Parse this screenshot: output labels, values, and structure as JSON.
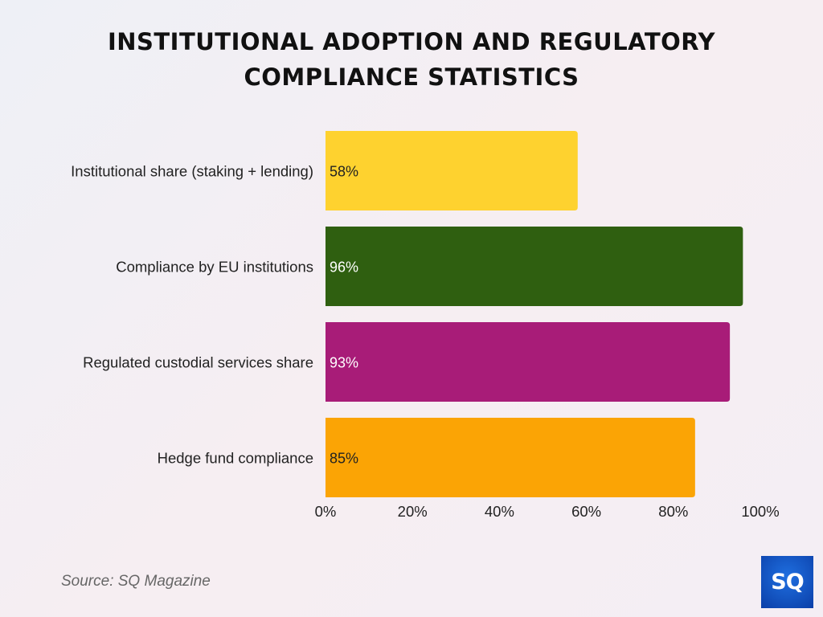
{
  "title_line1": "INSTITUTIONAL ADOPTION AND REGULATORY",
  "title_line2": "COMPLIANCE STATISTICS",
  "source": "Source: SQ Magazine",
  "logo_text": "SQ",
  "chart_data": {
    "type": "bar",
    "orientation": "horizontal",
    "title": "INSTITUTIONAL ADOPTION AND REGULATORY COMPLIANCE STATISTICS",
    "categories": [
      "Institutional share (staking + lending)",
      "Compliance by EU institutions",
      "Regulated custodial services share",
      "Hedge fund compliance"
    ],
    "values": [
      58,
      96,
      93,
      85
    ],
    "value_labels": [
      "58%",
      "96%",
      "93%",
      "85%"
    ],
    "colors": [
      "#fed22f",
      "#2f5f10",
      "#a81c78",
      "#fba405"
    ],
    "label_colors": [
      "#222222",
      "#ffffff",
      "#ffffff",
      "#222222"
    ],
    "xlim": [
      0,
      100
    ],
    "xticks": [
      "0%",
      "20%",
      "40%",
      "60%",
      "80%",
      "100%"
    ],
    "xtick_values": [
      0,
      20,
      40,
      60,
      80,
      100
    ],
    "grid": false
  }
}
